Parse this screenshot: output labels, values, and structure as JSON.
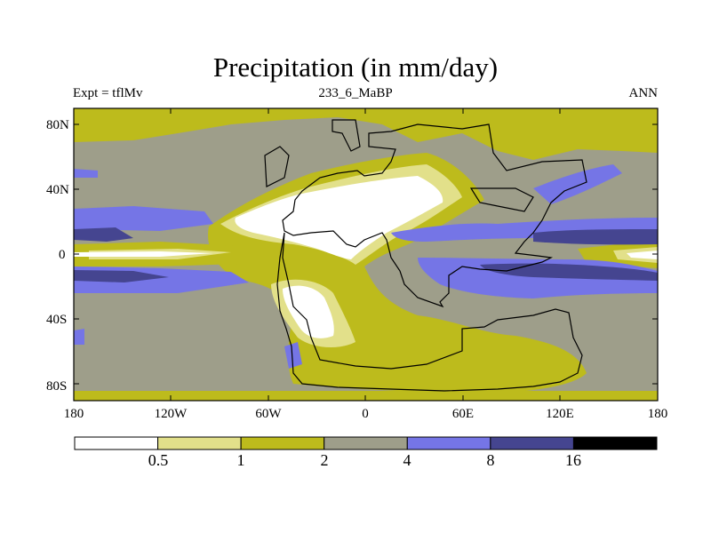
{
  "title": "Precipitation (in mm/day)",
  "subtitle_left": "Expt = tflMv",
  "subtitle_center": "233_6_MaBP",
  "subtitle_right": "ANN",
  "lat_labels": [
    "80N",
    "40N",
    "0",
    "40S",
    "80S"
  ],
  "lon_labels": [
    "180",
    "120W",
    "60W",
    "0",
    "60E",
    "120E",
    "180"
  ],
  "colorbar": {
    "levels": [
      "0.5",
      "1",
      "2",
      "4",
      "8",
      "16"
    ],
    "colors": [
      "#ffffff",
      "#e2e08a",
      "#bdbb1c",
      "#9e9e8a",
      "#7575e6",
      "#454590",
      "#000000"
    ]
  },
  "chart_data": {
    "type": "heatmap",
    "title": "Precipitation (in mm/day)",
    "units": "mm/day",
    "experiment": "tflMv",
    "period": "233_6_MaBP",
    "season": "ANN",
    "x_range": [
      -180,
      180
    ],
    "y_range": [
      -90,
      90
    ],
    "contour_levels": [
      0.5,
      1,
      2,
      4,
      8,
      16
    ]
  }
}
